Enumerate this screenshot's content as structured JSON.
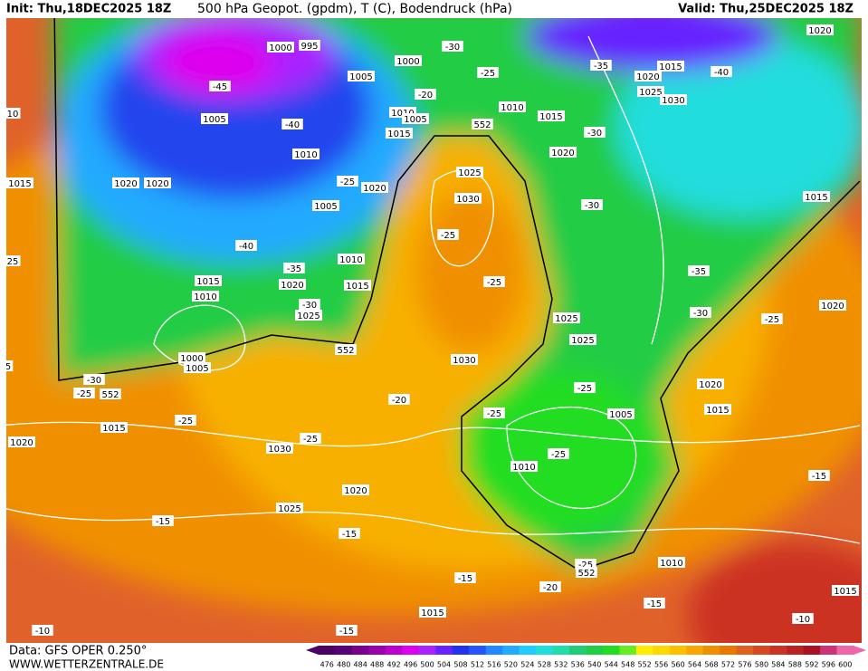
{
  "header": {
    "init": "Init: Thu,18DEC2025 18Z",
    "title": "500 hPa Geopot. (gpdm), T (C), Bodendruck (hPa)",
    "valid": "Valid: Thu,25DEC2025 18Z"
  },
  "footer": {
    "data": "Data: GFS OPER 0.250°",
    "site": "WWW.WETTERZENTRALE.DE"
  },
  "colorbar": {
    "values": [
      476,
      480,
      484,
      488,
      492,
      496,
      500,
      504,
      508,
      512,
      516,
      520,
      524,
      528,
      532,
      536,
      540,
      544,
      548,
      552,
      556,
      560,
      564,
      568,
      572,
      576,
      580,
      584,
      588,
      592,
      596,
      600
    ],
    "colors": [
      "#4b0066",
      "#5a0078",
      "#7a0090",
      "#9900aa",
      "#bb00cc",
      "#dd00ee",
      "#aa22ff",
      "#6622ff",
      "#2233ee",
      "#2255ff",
      "#2288ff",
      "#22aaff",
      "#22ccff",
      "#22dddd",
      "#22ddaa",
      "#22cc77",
      "#22cc44",
      "#22dd22",
      "#66ee22",
      "#ffee00",
      "#ffd800",
      "#ffc000",
      "#f8a800",
      "#f09000",
      "#e87800",
      "#e06020",
      "#d84820",
      "#cc3322",
      "#bb2222",
      "#aa1122",
      "#cc3377",
      "#ee66aa"
    ]
  },
  "map_labels": [
    "995",
    "1000",
    "1005",
    "1000",
    "-45",
    "1005",
    "-40",
    "1010",
    "1005",
    "1015",
    "1010",
    "552",
    "1010",
    "1015",
    "-20",
    "-25",
    "-30",
    "-35",
    "1020",
    "1015",
    "-40",
    "1025",
    "1030",
    "1020",
    "-30",
    "1020",
    "1020",
    "1020",
    "1015",
    "-25",
    "1020",
    "1005",
    "1025",
    "1030",
    "-30",
    "1015",
    "-25",
    "-40",
    "1010",
    "-35",
    "1015",
    "1010",
    "1020",
    "1015",
    "-30",
    "1025",
    "-25",
    "-35",
    "1025",
    "-30",
    "-25",
    "1020",
    "1025",
    "552",
    "1030",
    "1000",
    "1005",
    "-30",
    "-25",
    "552",
    "-20",
    "-25",
    "1020",
    "1015",
    "-25",
    "1005",
    "-25",
    "1015",
    "1020",
    "-25",
    "1030",
    "-25",
    "1010",
    "1020",
    "1025",
    "-15",
    "-15",
    "-15",
    "-25",
    "552",
    "1010",
    "-15",
    "-20",
    "-15",
    "1015",
    "1015",
    "-10",
    "-10",
    "-15",
    "10",
    "25",
    "5"
  ]
}
